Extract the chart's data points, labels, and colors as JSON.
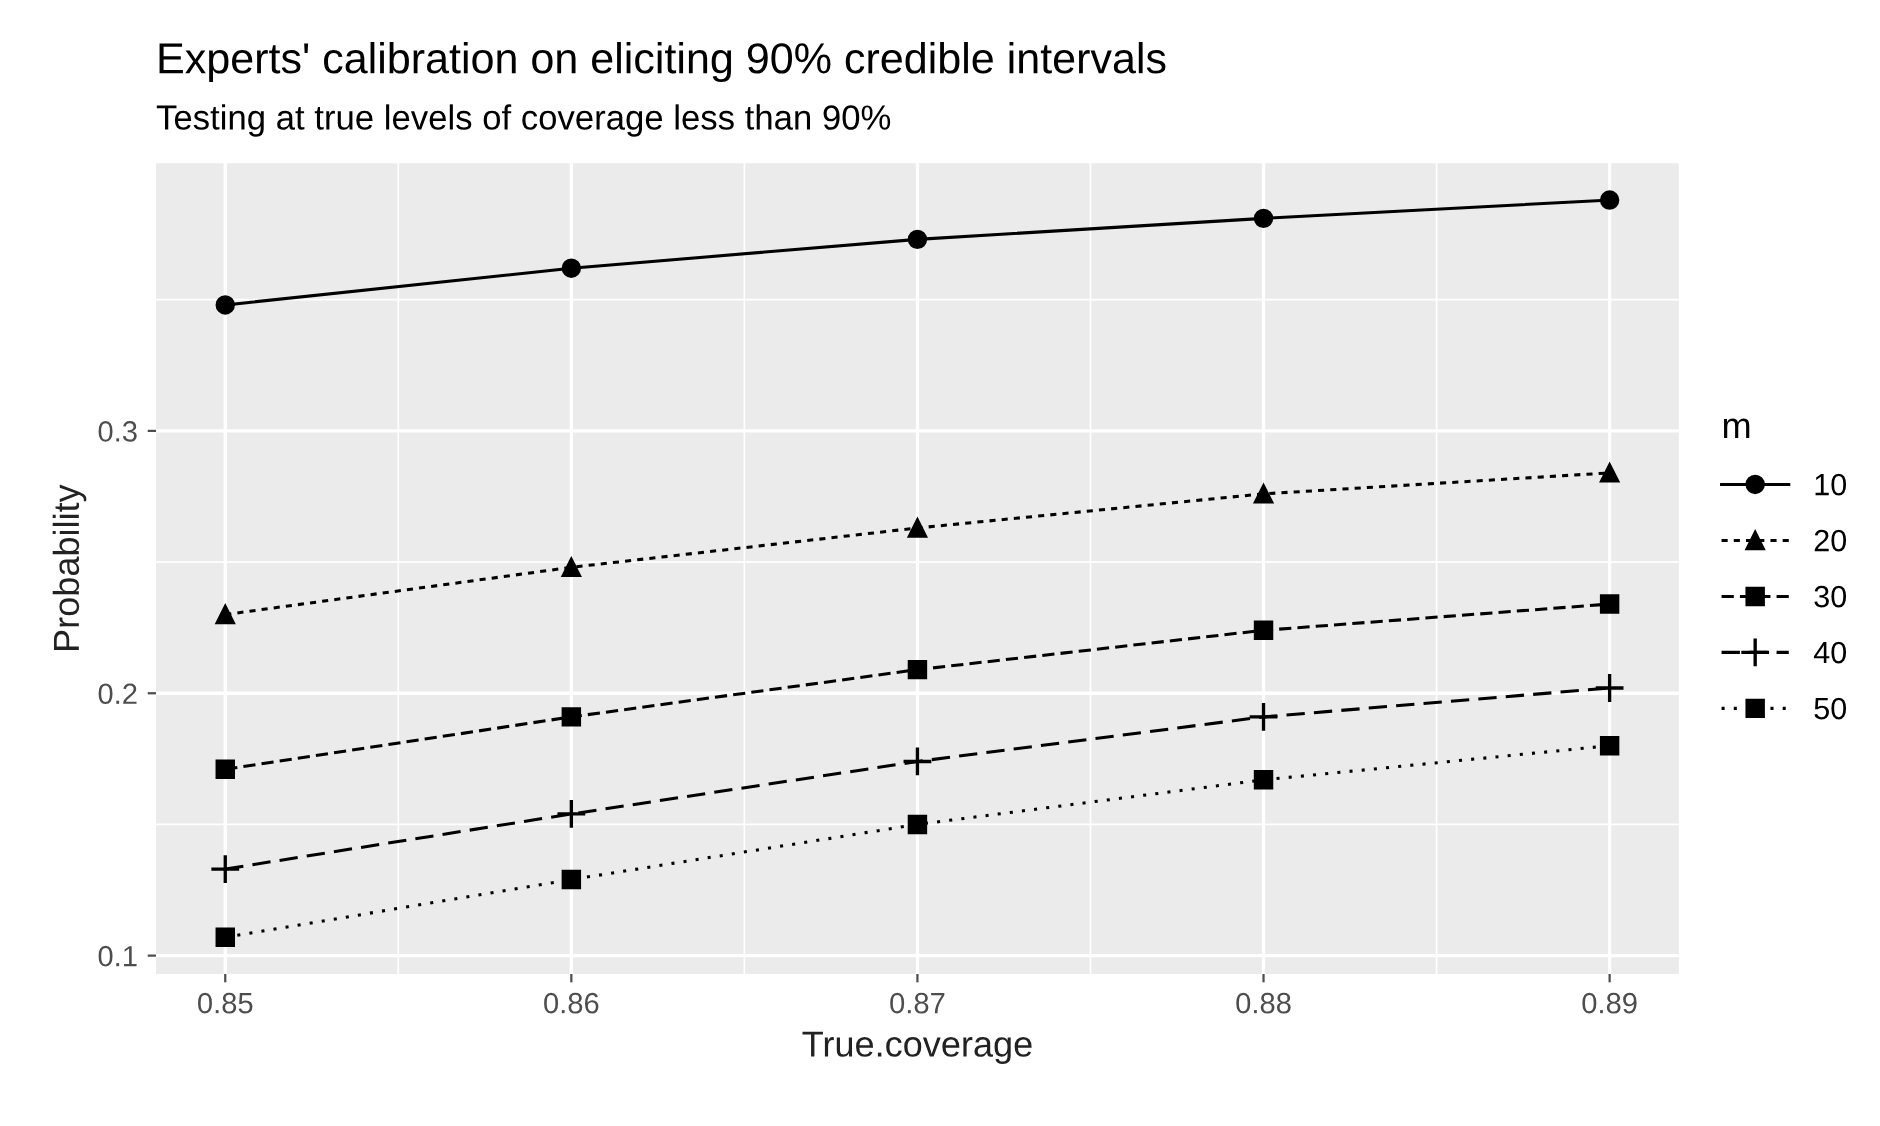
{
  "chart_data": {
    "type": "line",
    "title": "Experts' calibration on eliciting 90% credible intervals",
    "subtitle": "Testing at true levels of coverage less than 90%",
    "xlabel": "True.coverage",
    "ylabel": "Probability",
    "legend_title": "m",
    "x": [
      0.85,
      0.86,
      0.87,
      0.88,
      0.89
    ],
    "series": [
      {
        "name": "10",
        "color": "#000000",
        "marker": "circle",
        "line_style": "solid",
        "values": [
          0.348,
          0.362,
          0.373,
          0.381,
          0.388
        ]
      },
      {
        "name": "20",
        "color": "#000000",
        "marker": "triangle",
        "line_style": "short-dashed",
        "values": [
          0.23,
          0.248,
          0.263,
          0.276,
          0.284
        ]
      },
      {
        "name": "30",
        "color": "#000000",
        "marker": "square",
        "line_style": "dashed",
        "values": [
          0.171,
          0.191,
          0.209,
          0.224,
          0.234
        ]
      },
      {
        "name": "40",
        "color": "#000000",
        "marker": "cross",
        "line_style": "long-dashed",
        "values": [
          0.133,
          0.154,
          0.174,
          0.191,
          0.202
        ]
      },
      {
        "name": "50",
        "color": "#000000",
        "marker": "square",
        "line_style": "dotted",
        "values": [
          0.107,
          0.129,
          0.15,
          0.167,
          0.18
        ]
      }
    ],
    "xlim": [
      0.848,
      0.892
    ],
    "xticks": [
      0.85,
      0.86,
      0.87,
      0.88,
      0.89
    ],
    "ylim": [
      0.093,
      0.402
    ],
    "yticks": [
      0.1,
      0.2,
      0.3
    ],
    "grid": true,
    "legend": "right"
  }
}
